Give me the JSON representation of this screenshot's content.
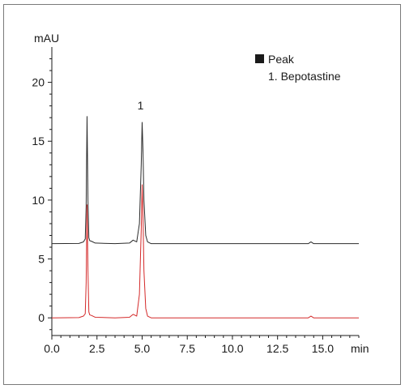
{
  "chart_data": {
    "type": "line",
    "xlabel": "min",
    "ylabel": "mAU",
    "xlim": [
      0,
      17
    ],
    "ylim": [
      -1.5,
      23
    ],
    "x_ticks": [
      0.0,
      2.5,
      5.0,
      7.5,
      10.0,
      12.5,
      15.0
    ],
    "x_tick_labels": [
      "0.0",
      "2.5",
      "5.0",
      "7.5",
      "10.0",
      "12.5",
      "15.0"
    ],
    "y_ticks": [
      0,
      5,
      10,
      15,
      20
    ],
    "y_tick_labels": [
      "0",
      "5",
      "10",
      "15",
      "20"
    ],
    "grid": false,
    "legend": {
      "position": "top-right",
      "title": "Peak",
      "entries": [
        "1. Bepotastine"
      ]
    },
    "annotations": [
      {
        "text": "1",
        "x": 5.0,
        "y": 17.3
      }
    ],
    "series": [
      {
        "color": "#2b2b2b",
        "baseline": 6.3,
        "x": [
          0.0,
          1.5,
          1.75,
          1.85,
          1.9,
          1.95,
          2.0,
          2.05,
          2.1,
          2.2,
          2.4,
          3.5,
          4.3,
          4.5,
          4.7,
          4.85,
          4.95,
          5.0,
          5.05,
          5.1,
          5.2,
          5.3,
          5.5,
          7.0,
          14.2,
          14.35,
          14.5,
          17.0
        ],
        "y": [
          6.3,
          6.32,
          6.45,
          6.7,
          9.5,
          17.1,
          10.0,
          6.8,
          6.55,
          6.5,
          6.35,
          6.3,
          6.35,
          6.6,
          6.45,
          8.0,
          13.0,
          16.6,
          14.0,
          10.0,
          7.0,
          6.45,
          6.3,
          6.3,
          6.3,
          6.45,
          6.3,
          6.3
        ]
      },
      {
        "color": "#d42a2a",
        "baseline": 0.0,
        "x": [
          0.0,
          1.5,
          1.75,
          1.85,
          1.9,
          1.95,
          2.0,
          2.05,
          2.1,
          2.2,
          2.4,
          3.5,
          4.3,
          4.5,
          4.7,
          4.85,
          4.95,
          5.0,
          5.05,
          5.1,
          5.2,
          5.3,
          5.5,
          7.0,
          14.2,
          14.35,
          14.5,
          17.0
        ],
        "y": [
          0.0,
          0.02,
          0.15,
          0.35,
          3.0,
          9.6,
          4.0,
          0.5,
          0.25,
          0.2,
          0.05,
          0.0,
          0.05,
          0.3,
          0.15,
          2.0,
          7.5,
          11.3,
          8.5,
          4.0,
          0.8,
          0.15,
          0.0,
          0.0,
          0.0,
          0.15,
          0.0,
          0.0
        ]
      }
    ]
  },
  "colors": {
    "axis": "#1a1a1a",
    "frame": "#7a7a7a",
    "legend_marker": "#1a1a1a"
  }
}
